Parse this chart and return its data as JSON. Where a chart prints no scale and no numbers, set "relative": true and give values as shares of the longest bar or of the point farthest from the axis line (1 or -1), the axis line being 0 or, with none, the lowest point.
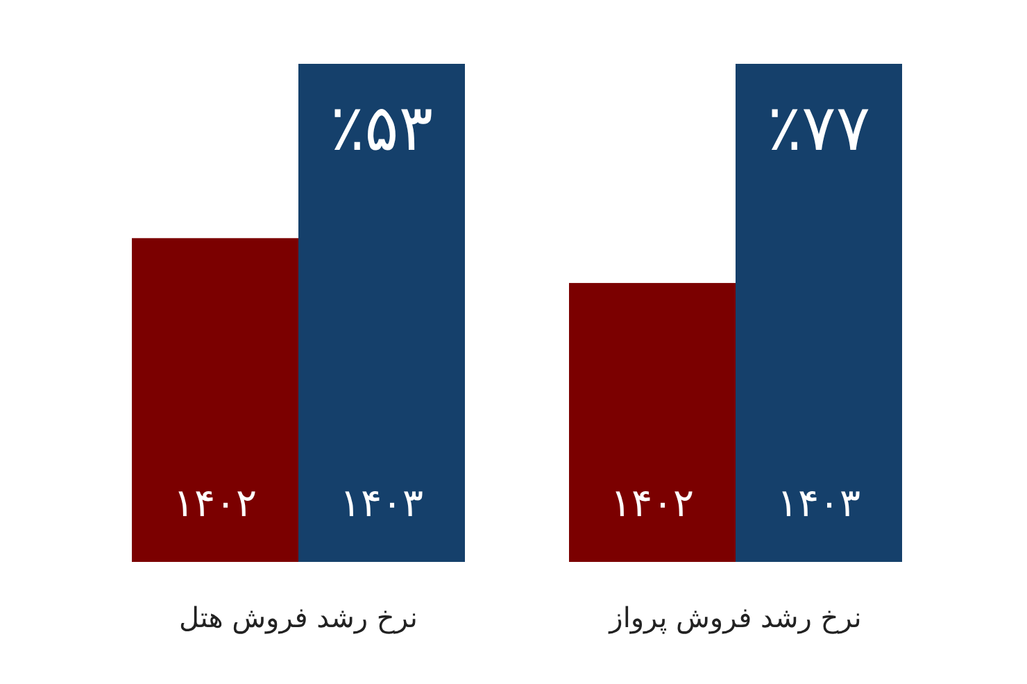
{
  "chart_data": [
    {
      "type": "bar",
      "title": "نرخ رشد فروش هتل",
      "categories": [
        "۱۴۰۲",
        "۱۴۰۳"
      ],
      "values": [
        0.65,
        1
      ],
      "colors": [
        "#7b0000",
        "#15406b"
      ],
      "annotations": [
        {
          "text": "٪۵۳",
          "x": "۱۴۰۳",
          "y": 1
        }
      ],
      "relative": true
    },
    {
      "type": "bar",
      "title": "نرخ رشد فروش پرواز",
      "categories": [
        "۱۴۰۲",
        "۱۴۰۳"
      ],
      "values": [
        0.56,
        1
      ],
      "colors": [
        "#7b0000",
        "#15406b"
      ],
      "annotations": [
        {
          "text": "٪۷۷",
          "x": "۱۴۰۳",
          "y": 1
        }
      ],
      "relative": true
    }
  ]
}
